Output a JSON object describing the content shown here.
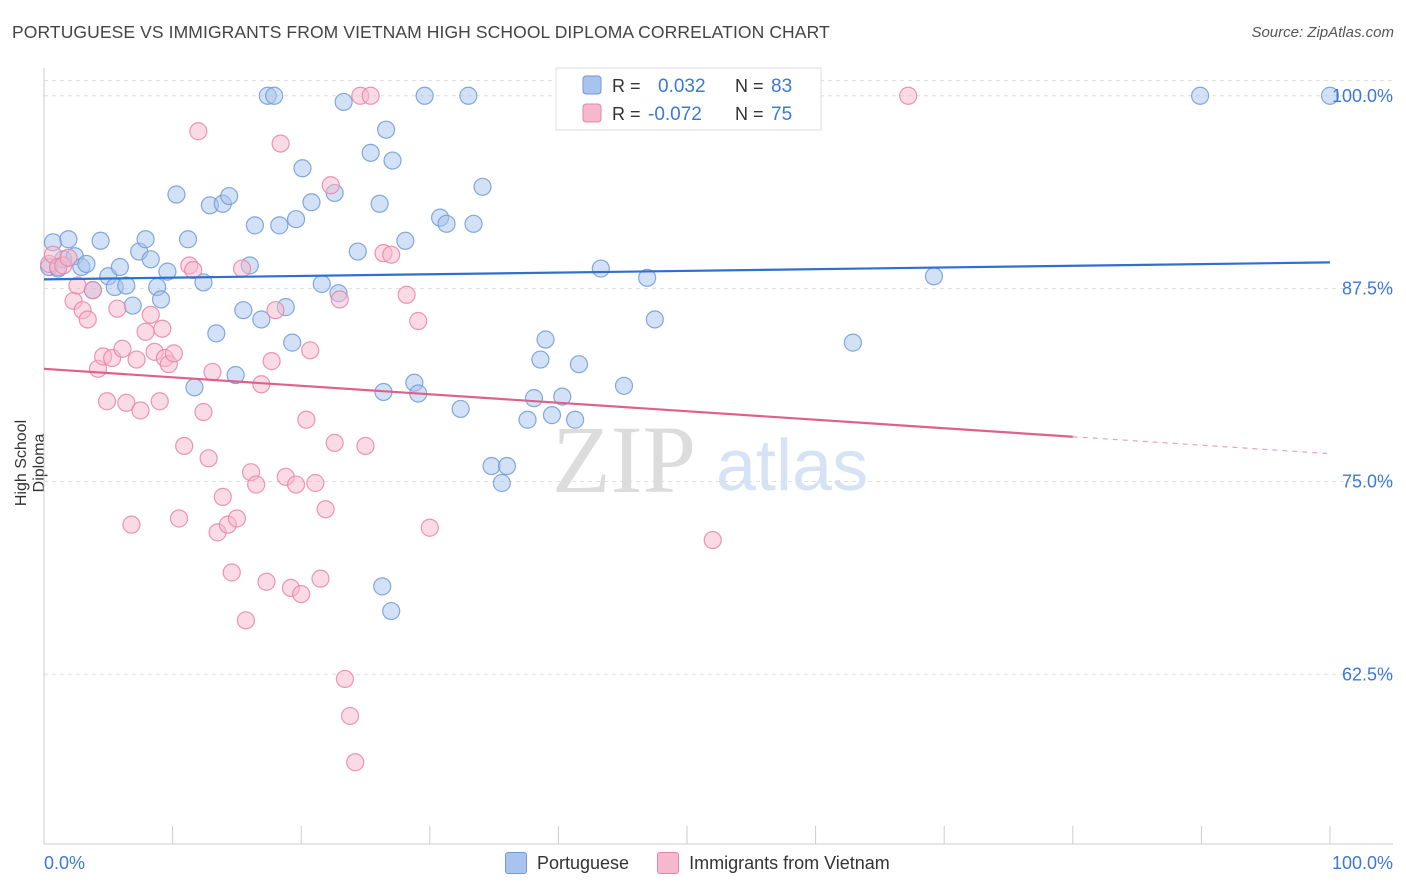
{
  "header": {
    "title": "PORTUGUESE VS IMMIGRANTS FROM VIETNAM HIGH SCHOOL DIPLOMA CORRELATION CHART",
    "source": "Source: ZipAtlas.com"
  },
  "watermark": {
    "zip": "ZIP",
    "atlas": "atlas"
  },
  "colors": {
    "blue_fill": "#a8c4ee",
    "blue_stroke": "#6f9ad8",
    "blue_line": "#2e6fd0",
    "pink_fill": "#f5b8cc",
    "pink_stroke": "#e884a8",
    "pink_line": "#e0608c",
    "tick_text": "#3c78d8",
    "grid": "#dddddd"
  },
  "legend_top": {
    "rows": [
      {
        "r_label": "R =",
        "r_value": "0.032",
        "n_label": "N =",
        "n_value": "83"
      },
      {
        "r_label": "R =",
        "r_value": "-0.072",
        "n_label": "N =",
        "n_value": "75"
      }
    ]
  },
  "legend_bottom": {
    "items": [
      {
        "label": "Portuguese"
      },
      {
        "label": "Immigrants from Vietnam"
      }
    ]
  },
  "chart_data": {
    "type": "scatter",
    "title": "PORTUGUESE VS IMMIGRANTS FROM VIETNAM HIGH SCHOOL DIPLOMA CORRELATION CHART",
    "xlabel": "",
    "ylabel": "High School Diploma",
    "xlim": [
      0,
      100
    ],
    "ylim": [
      51.5,
      101.8
    ],
    "x_tick_labels": [
      "0.0%",
      "100.0%"
    ],
    "y_ticks": [
      {
        "value": 100.0,
        "label": "100.0%"
      },
      {
        "value": 87.5,
        "label": "87.5%"
      },
      {
        "value": 75.0,
        "label": "75.0%"
      },
      {
        "value": 62.5,
        "label": "62.5%"
      }
    ],
    "series": [
      {
        "name": "Portuguese",
        "R": 0.032,
        "N": 83,
        "trend": {
          "x": [
            0,
            100
          ],
          "y": [
            88.1,
            89.2
          ],
          "dashed_from": null
        },
        "points": [
          [
            0.4,
            88.9
          ],
          [
            0.7,
            90.5
          ],
          [
            1.1,
            88.8
          ],
          [
            1.5,
            89.4
          ],
          [
            1.9,
            90.7
          ],
          [
            2.4,
            89.6
          ],
          [
            2.9,
            88.9
          ],
          [
            3.3,
            89.1
          ],
          [
            3.8,
            87.4
          ],
          [
            4.4,
            90.6
          ],
          [
            5.0,
            88.3
          ],
          [
            5.5,
            87.6
          ],
          [
            5.9,
            88.9
          ],
          [
            6.4,
            87.7
          ],
          [
            6.9,
            86.4
          ],
          [
            7.4,
            89.9
          ],
          [
            7.9,
            90.7
          ],
          [
            8.3,
            89.4
          ],
          [
            8.8,
            87.6
          ],
          [
            9.1,
            86.8
          ],
          [
            9.6,
            88.6
          ],
          [
            10.3,
            93.6
          ],
          [
            11.2,
            90.7
          ],
          [
            11.7,
            81.1
          ],
          [
            12.4,
            87.9
          ],
          [
            12.9,
            92.9
          ],
          [
            13.4,
            84.6
          ],
          [
            13.9,
            93.0
          ],
          [
            14.4,
            93.5
          ],
          [
            14.9,
            81.9
          ],
          [
            15.5,
            86.1
          ],
          [
            16.0,
            89.0
          ],
          [
            16.4,
            91.6
          ],
          [
            16.9,
            85.5
          ],
          [
            17.4,
            100.0
          ],
          [
            17.9,
            100.0
          ],
          [
            18.3,
            91.6
          ],
          [
            18.8,
            86.3
          ],
          [
            19.3,
            84.0
          ],
          [
            19.6,
            92.0
          ],
          [
            20.1,
            95.3
          ],
          [
            20.8,
            93.1
          ],
          [
            21.6,
            87.8
          ],
          [
            22.6,
            93.7
          ],
          [
            22.9,
            87.2
          ],
          [
            23.3,
            99.6
          ],
          [
            24.4,
            89.9
          ],
          [
            25.4,
            96.3
          ],
          [
            26.1,
            93.0
          ],
          [
            26.4,
            80.8
          ],
          [
            26.6,
            97.8
          ],
          [
            27.1,
            95.8
          ],
          [
            28.1,
            90.6
          ],
          [
            28.8,
            81.4
          ],
          [
            29.1,
            80.7
          ],
          [
            29.6,
            100.0
          ],
          [
            30.8,
            92.1
          ],
          [
            31.3,
            91.7
          ],
          [
            32.4,
            79.7
          ],
          [
            33.0,
            100.0
          ],
          [
            33.4,
            91.7
          ],
          [
            34.1,
            94.1
          ],
          [
            34.8,
            76.0
          ],
          [
            35.6,
            74.9
          ],
          [
            36.0,
            76.0
          ],
          [
            37.6,
            79.0
          ],
          [
            38.1,
            80.4
          ],
          [
            38.6,
            82.9
          ],
          [
            39.0,
            84.2
          ],
          [
            39.5,
            79.3
          ],
          [
            40.3,
            80.5
          ],
          [
            41.3,
            79.0
          ],
          [
            41.6,
            82.6
          ],
          [
            43.3,
            88.8
          ],
          [
            45.1,
            81.2
          ],
          [
            46.9,
            88.2
          ],
          [
            47.5,
            85.5
          ],
          [
            62.9,
            84.0
          ],
          [
            69.2,
            88.3
          ],
          [
            89.9,
            100.0
          ],
          [
            100.0,
            100.0
          ],
          [
            26.3,
            68.2
          ],
          [
            27.0,
            66.6
          ]
        ]
      },
      {
        "name": "Immigrants from Vietnam",
        "R": -0.072,
        "N": 75,
        "trend": {
          "x": [
            0,
            100
          ],
          "y": [
            82.3,
            76.8
          ],
          "dashed_from": 80
        },
        "points": [
          [
            0.4,
            89.1
          ],
          [
            0.7,
            89.7
          ],
          [
            1.1,
            88.9
          ],
          [
            1.5,
            89.0
          ],
          [
            1.9,
            89.5
          ],
          [
            2.3,
            86.7
          ],
          [
            2.6,
            87.7
          ],
          [
            3.0,
            86.1
          ],
          [
            3.4,
            85.5
          ],
          [
            3.8,
            87.4
          ],
          [
            4.2,
            82.3
          ],
          [
            4.6,
            83.1
          ],
          [
            4.9,
            80.2
          ],
          [
            5.3,
            83.0
          ],
          [
            5.7,
            86.2
          ],
          [
            6.1,
            83.6
          ],
          [
            6.4,
            80.1
          ],
          [
            6.8,
            72.2
          ],
          [
            7.2,
            82.9
          ],
          [
            7.5,
            79.6
          ],
          [
            7.9,
            84.7
          ],
          [
            8.3,
            85.8
          ],
          [
            8.6,
            83.4
          ],
          [
            9.0,
            80.2
          ],
          [
            9.4,
            83.0
          ],
          [
            9.7,
            82.6
          ],
          [
            10.1,
            83.3
          ],
          [
            10.5,
            72.6
          ],
          [
            10.9,
            77.3
          ],
          [
            11.3,
            89.0
          ],
          [
            11.6,
            88.7
          ],
          [
            12.0,
            97.7
          ],
          [
            12.4,
            79.5
          ],
          [
            12.8,
            76.5
          ],
          [
            13.1,
            82.1
          ],
          [
            13.5,
            71.7
          ],
          [
            13.9,
            74.0
          ],
          [
            14.3,
            72.2
          ],
          [
            14.6,
            69.1
          ],
          [
            15.0,
            72.6
          ],
          [
            15.4,
            88.8
          ],
          [
            15.7,
            66.0
          ],
          [
            16.1,
            75.6
          ],
          [
            16.5,
            74.8
          ],
          [
            16.9,
            81.3
          ],
          [
            17.3,
            68.5
          ],
          [
            17.7,
            82.8
          ],
          [
            18.0,
            86.1
          ],
          [
            18.4,
            96.9
          ],
          [
            18.8,
            75.3
          ],
          [
            19.2,
            68.1
          ],
          [
            19.6,
            74.8
          ],
          [
            20.0,
            67.7
          ],
          [
            20.4,
            79.0
          ],
          [
            20.7,
            83.5
          ],
          [
            21.1,
            74.9
          ],
          [
            21.5,
            68.7
          ],
          [
            21.9,
            73.2
          ],
          [
            22.3,
            94.2
          ],
          [
            22.6,
            77.5
          ],
          [
            23.0,
            86.8
          ],
          [
            23.4,
            62.2
          ],
          [
            23.8,
            59.8
          ],
          [
            24.2,
            56.8
          ],
          [
            24.6,
            100.0
          ],
          [
            25.0,
            77.3
          ],
          [
            25.4,
            100.0
          ],
          [
            26.4,
            89.8
          ],
          [
            27.0,
            89.7
          ],
          [
            28.2,
            87.1
          ],
          [
            29.1,
            85.4
          ],
          [
            30.0,
            72.0
          ],
          [
            52.0,
            71.2
          ],
          [
            67.2,
            100.0
          ],
          [
            9.2,
            84.9
          ]
        ]
      }
    ]
  }
}
